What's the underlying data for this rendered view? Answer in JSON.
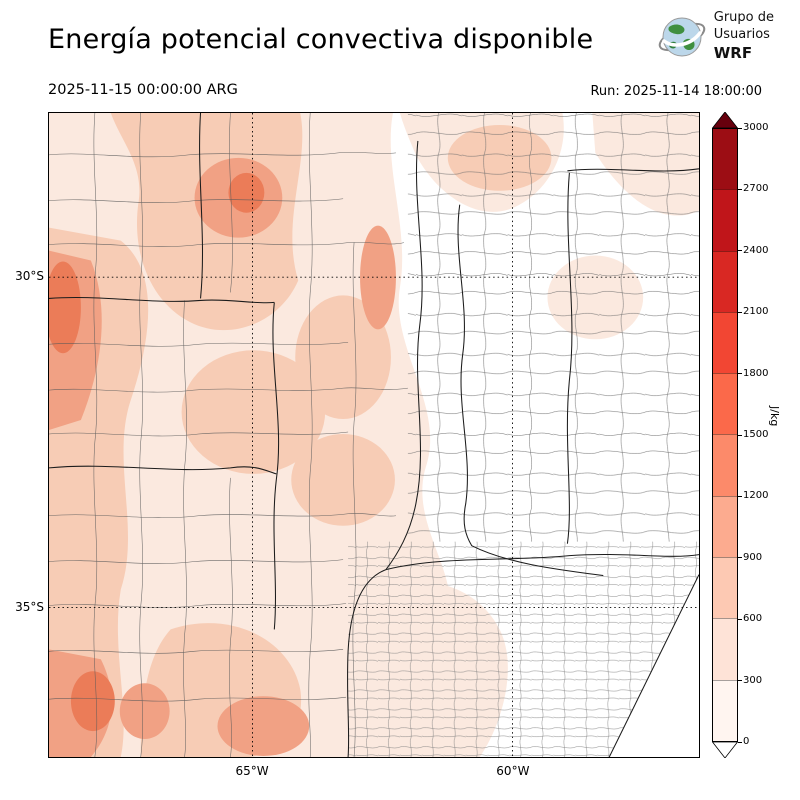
{
  "header": {
    "title": "Energía potencial convectiva disponible",
    "logo": {
      "line1": "Grupo de",
      "line2": "Usuarios",
      "line3": "WRF"
    }
  },
  "subheader": {
    "valid_time": "2025-11-15 00:00:00 ARG",
    "run_label": "Run: 2025-11-14 18:00:00"
  },
  "map": {
    "lat_ticks": [
      {
        "label": "30°S",
        "frac": 0.255
      },
      {
        "label": "35°S",
        "frac": 0.768
      }
    ],
    "lon_ticks": [
      {
        "label": "65°W",
        "frac": 0.313
      },
      {
        "label": "60°W",
        "frac": 0.713
      }
    ]
  },
  "colorbar": {
    "unit": "J/kg",
    "tick_labels": [
      "0",
      "300",
      "600",
      "900",
      "1200",
      "1500",
      "1800",
      "2100",
      "2400",
      "2700",
      "3000"
    ],
    "segment_colors_bottom_to_top": [
      "#fff5f0",
      "#fee3d7",
      "#fdc9b3",
      "#fcab8f",
      "#fc8a6a",
      "#fb694a",
      "#f24633",
      "#d92823",
      "#c0151a",
      "#9c0d14"
    ],
    "over_color": "#67000d",
    "under_color": "#ffffff"
  },
  "chart_data": {
    "type": "heatmap",
    "title": "Energía potencial convectiva disponible",
    "variable_unit": "J/kg",
    "valid_time": "2025-11-15 00:00:00 ARG",
    "model_run": "2025-11-14 18:00:00",
    "colorbar_ticks": [
      0,
      300,
      600,
      900,
      1200,
      1500,
      1800,
      2100,
      2400,
      2700,
      3000
    ],
    "colorbar_extends": "both",
    "lat_gridlines": [
      "30°S",
      "35°S"
    ],
    "lon_gridlines": [
      "65°W",
      "60°W"
    ],
    "legend_position": "right",
    "grid": "dotted",
    "value_summary": {
      "west_region_range": [
        300,
        1200
      ],
      "east_region_range": [
        0,
        300
      ]
    }
  }
}
